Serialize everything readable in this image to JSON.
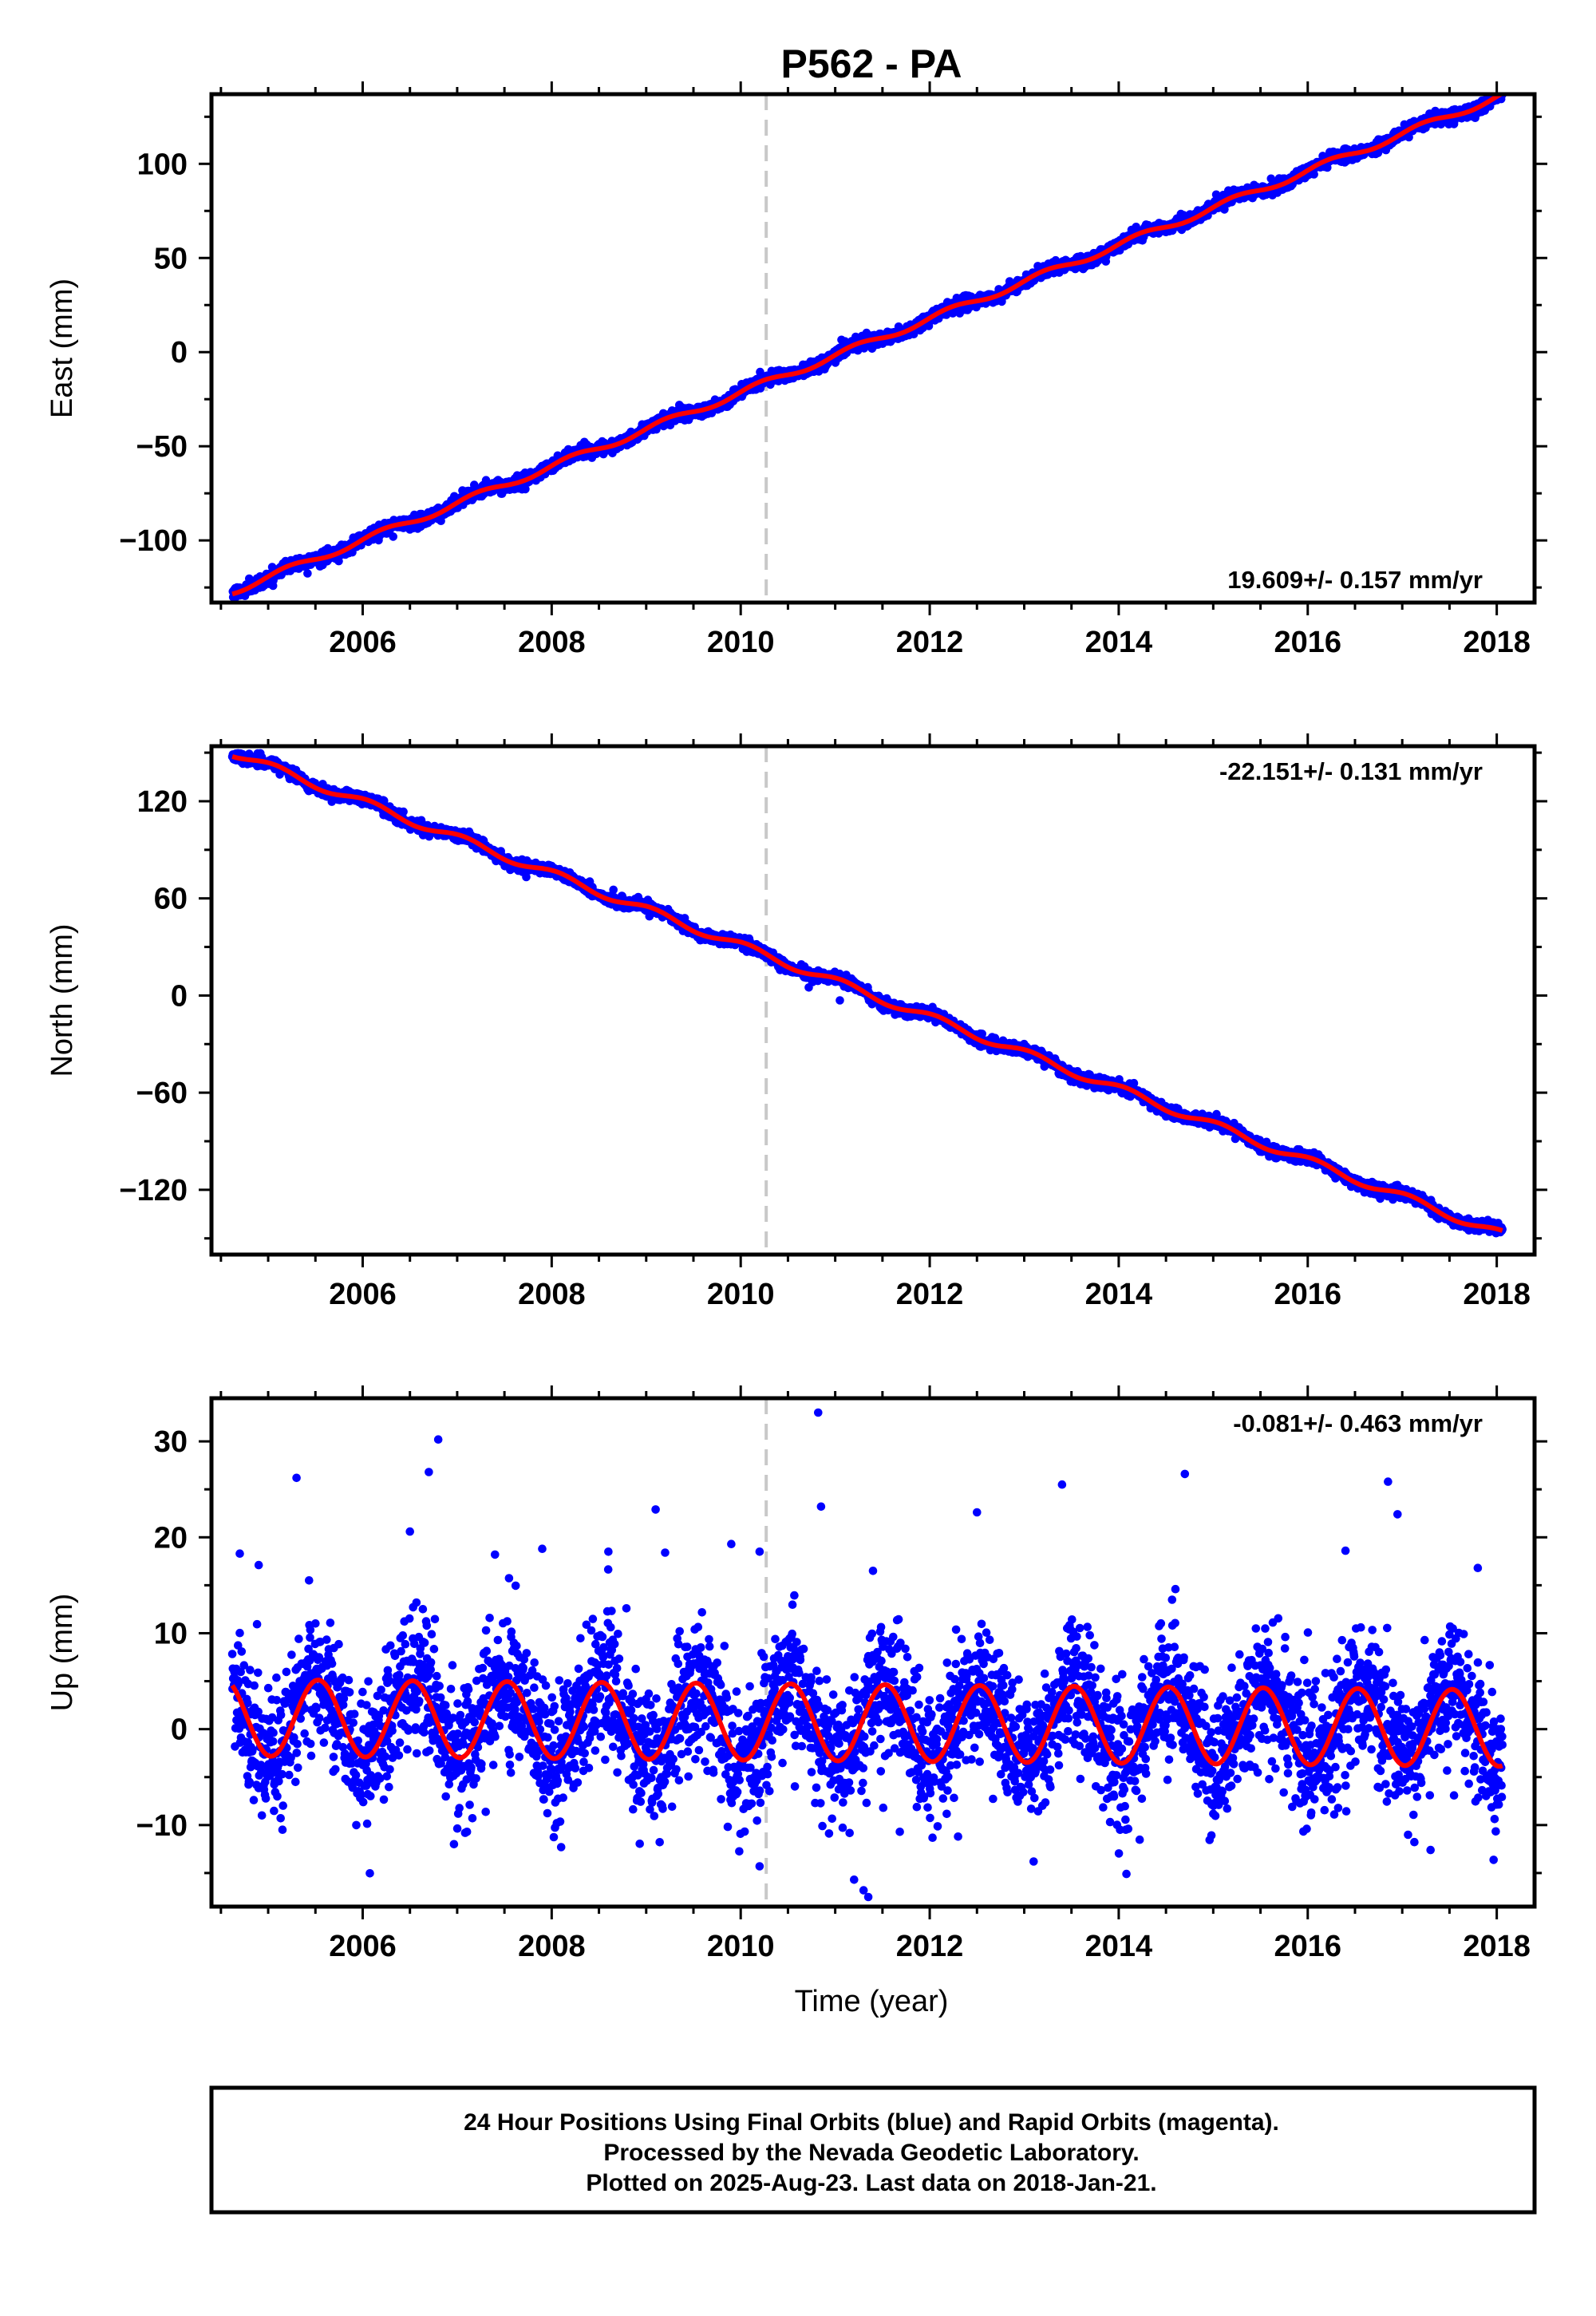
{
  "title": "P562 - PA",
  "colors": {
    "final_orbits": "#0000ff",
    "model": "#ff0000",
    "event_line": "#c8c8c8",
    "frame": "#000000"
  },
  "footer": {
    "line1": "24 Hour Positions Using Final Orbits (blue) and Rapid Orbits (magenta).",
    "line2": "Processed by the Nevada Geodetic Laboratory.",
    "line3": "Plotted on 2025-Aug-23. Last data on 2018-Jan-21."
  },
  "chart_data": [
    {
      "type": "scatter",
      "component": "east",
      "ylabel": "East (mm)",
      "xlabel": "",
      "xlim": [
        2004.4,
        2018.4
      ],
      "ylim": [
        -133,
        137
      ],
      "yticks": [
        -100,
        -50,
        0,
        50,
        100
      ],
      "ytick_labels": [
        "−100",
        "−50",
        "0",
        "50",
        "100"
      ],
      "xticks": [
        2006,
        2008,
        2010,
        2012,
        2014,
        2016,
        2018
      ],
      "xtick_labels": [
        "2006",
        "2008",
        "2010",
        "2012",
        "2014",
        "2016",
        "2018"
      ],
      "rate_label": "19.609+/- 0.157 mm/yr",
      "rate_position": "bottom-right",
      "event_line_x": 2010.27,
      "data_range": [
        2004.62,
        2018.06
      ],
      "trend": {
        "slope": 19.609,
        "intercept": -127.0,
        "t0": 2004.62
      },
      "seasonal": {
        "amplitude": 1.8,
        "phase": 0.2
      },
      "scatter_sigma": 1.6,
      "outliers": [],
      "series": [
        {
          "name": "Final Orbits (blue)",
          "role": "points"
        },
        {
          "name": "",
          "role": "model"
        }
      ]
    },
    {
      "type": "scatter",
      "component": "north",
      "ylabel": "North (mm)",
      "xlabel": "",
      "xlim": [
        2004.4,
        2018.4
      ],
      "ylim": [
        -160,
        154
      ],
      "yticks": [
        -120,
        -60,
        0,
        60,
        120
      ],
      "ytick_labels": [
        "−120",
        "−60",
        "0",
        "60",
        "120"
      ],
      "xticks": [
        2006,
        2008,
        2010,
        2012,
        2014,
        2016,
        2018
      ],
      "xtick_labels": [
        "2006",
        "2008",
        "2010",
        "2012",
        "2014",
        "2016",
        "2018"
      ],
      "rate_label": "-22.151+/- 0.131 mm/yr",
      "rate_position": "top-right",
      "event_line_x": 2010.27,
      "data_range": [
        2004.62,
        2018.06
      ],
      "trend": {
        "slope": -22.151,
        "intercept": 150.0,
        "t0": 2004.62
      },
      "seasonal": {
        "amplitude": 2.5,
        "phase": 1.1
      },
      "scatter_sigma": 1.7,
      "outliers": [
        [
          2010.72,
          5
        ],
        [
          2011.05,
          -3
        ]
      ],
      "series": [
        {
          "name": "Final Orbits (blue)",
          "role": "points"
        },
        {
          "name": "",
          "role": "model"
        }
      ]
    },
    {
      "type": "scatter",
      "component": "up",
      "ylabel": "Up (mm)",
      "xlabel": "Time (year)",
      "xlim": [
        2004.4,
        2018.4
      ],
      "ylim": [
        -18.5,
        34.5
      ],
      "yticks": [
        -10,
        0,
        10,
        20,
        30
      ],
      "ytick_labels": [
        "−10",
        "0",
        "10",
        "20",
        "30"
      ],
      "xticks": [
        2006,
        2008,
        2010,
        2012,
        2014,
        2016,
        2018
      ],
      "xtick_labels": [
        "2006",
        "2008",
        "2010",
        "2012",
        "2014",
        "2016",
        "2018"
      ],
      "rate_label": "-0.081+/- 0.463 mm/yr",
      "rate_position": "top-right",
      "event_line_x": 2010.27,
      "data_range": [
        2004.62,
        2018.06
      ],
      "trend": {
        "slope": -0.081,
        "intercept": 1.2,
        "t0": 2004.62
      },
      "seasonal": {
        "amplitude": 4.0,
        "phase": -1.75
      },
      "scatter_sigma": 3.3,
      "outliers": [
        [
          2004.7,
          18.3
        ],
        [
          2004.9,
          17.1
        ],
        [
          2005.3,
          26.2
        ],
        [
          2006.5,
          20.6
        ],
        [
          2006.7,
          26.8
        ],
        [
          2006.8,
          30.2
        ],
        [
          2007.4,
          18.2
        ],
        [
          2007.9,
          18.8
        ],
        [
          2008.6,
          18.5
        ],
        [
          2009.1,
          22.9
        ],
        [
          2009.2,
          18.4
        ],
        [
          2009.9,
          19.3
        ],
        [
          2010.2,
          18.5
        ],
        [
          2010.82,
          33
        ],
        [
          2010.85,
          23.2
        ],
        [
          2011.4,
          16.5
        ],
        [
          2012.5,
          22.6
        ],
        [
          2013.4,
          25.5
        ],
        [
          2014.7,
          26.6
        ],
        [
          2016.4,
          18.6
        ],
        [
          2016.85,
          25.8
        ],
        [
          2016.95,
          22.4
        ],
        [
          2017.8,
          16.8
        ],
        [
          2010.2,
          -14.3
        ],
        [
          2011.3,
          -16.8
        ],
        [
          2011.35,
          -17.5
        ],
        [
          2011.2,
          -15.7
        ],
        [
          2008.1,
          -12.3
        ],
        [
          2012.3,
          -11.2
        ],
        [
          2013.1,
          -13.8
        ],
        [
          2017.3,
          -12.6
        ]
      ],
      "series": [
        {
          "name": "Final Orbits (blue)",
          "role": "points"
        },
        {
          "name": "",
          "role": "model"
        }
      ]
    }
  ]
}
